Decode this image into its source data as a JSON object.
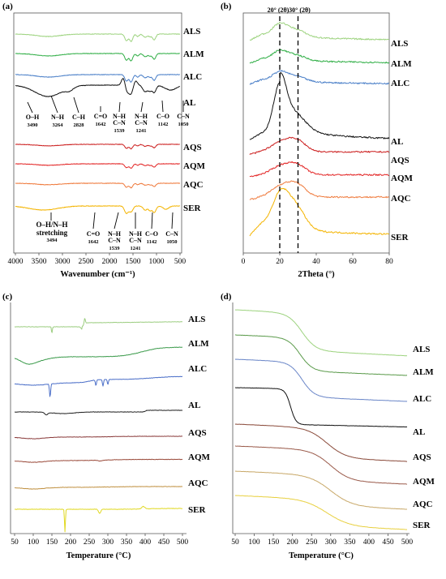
{
  "panels": [
    {
      "label": "(a)"
    },
    {
      "label": "(b)"
    },
    {
      "label": "(c)"
    },
    {
      "label": "(d)"
    }
  ],
  "colors": {
    "ALS": "#9dd37f",
    "ALM": "#2fae45",
    "ALC": "#4a7fc8",
    "AL": "#111111",
    "AQS": "#cc1f1f",
    "AQM": "#e32525",
    "AQC": "#ef7a3c",
    "SER": "#f4b400",
    "tg_ALS": "#9dd37f",
    "tg_ALM": "#5a9a4a",
    "tg_ALC": "#6a86c8",
    "tg_AL": "#111111",
    "tg_AQS": "#8a4a3a",
    "tg_AQM": "#9a5a4a",
    "tg_AQC": "#c8a868",
    "tg_SER": "#e8d040",
    "dsc_ALS": "#9ccd80",
    "dsc_ALM": "#3a9a4a",
    "dsc_ALC": "#4a6ec8",
    "dsc_AL": "#222222",
    "dsc_AQS": "#8a3a3a",
    "dsc_AQM": "#9a4a3a",
    "dsc_AQC": "#c09040",
    "dsc_SER": "#e0d820"
  },
  "chart_data": [
    {
      "type": "line",
      "panel": "(a)",
      "xlabel": "Wavenumber (cm⁻¹)",
      "x_ticks": [
        "4000",
        "3500",
        "3000",
        "2500",
        "2000",
        "1500",
        "1000",
        "500"
      ],
      "xlim": [
        4000,
        500
      ],
      "x_reversed": true,
      "series": [
        {
          "name": "ALS"
        },
        {
          "name": "ALM"
        },
        {
          "name": "ALC"
        },
        {
          "name": "AL"
        },
        {
          "name": "AQS"
        },
        {
          "name": "AQM"
        },
        {
          "name": "AQC"
        },
        {
          "name": "SER"
        }
      ],
      "al_annotations": [
        {
          "label": "O–H",
          "value": "3490"
        },
        {
          "label": "N–H",
          "value": "3264"
        },
        {
          "label": "C–H",
          "value": "2828"
        },
        {
          "label": "C=O",
          "value": "1642"
        },
        {
          "label": "N–H C–N",
          "value": "1539"
        },
        {
          "label": "N–H C–N",
          "value": "1241"
        },
        {
          "label": "C–O",
          "value": "1142"
        },
        {
          "label": "C–N",
          "value": "1050"
        }
      ],
      "ser_annotations": [
        {
          "label": "O–H/N–H stretching",
          "value": "3494"
        },
        {
          "label": "C=O",
          "value": "1642"
        },
        {
          "label": "N–H C–N",
          "value": "1539"
        },
        {
          "label": "N–H C–N",
          "value": "1241"
        },
        {
          "label": "C–O",
          "value": "1142"
        },
        {
          "label": "C–N",
          "value": "1050"
        }
      ]
    },
    {
      "type": "line",
      "panel": "(b)",
      "xlabel": "2Theta (°)",
      "x_ticks": [
        "0",
        "20",
        "40",
        "60",
        "80"
      ],
      "xlim": [
        0,
        80
      ],
      "markers": [
        {
          "x": 20,
          "label": "20° (2θ)"
        },
        {
          "x": 30,
          "label": "30° (2θ)"
        }
      ],
      "series": [
        {
          "name": "ALS"
        },
        {
          "name": "ALM"
        },
        {
          "name": "ALC"
        },
        {
          "name": "AL"
        },
        {
          "name": "AQS"
        },
        {
          "name": "AQM"
        },
        {
          "name": "AQC"
        },
        {
          "name": "SER"
        }
      ]
    },
    {
      "type": "line",
      "panel": "(c)",
      "xlabel": "Temperature (°C)",
      "x_ticks": [
        "50",
        "100",
        "150",
        "200",
        "250",
        "300",
        "350",
        "400",
        "450",
        "500"
      ],
      "xlim": [
        50,
        500
      ],
      "series": [
        {
          "name": "ALS"
        },
        {
          "name": "ALM"
        },
        {
          "name": "ALC"
        },
        {
          "name": "AL"
        },
        {
          "name": "AQS"
        },
        {
          "name": "AQM"
        },
        {
          "name": "AQC"
        },
        {
          "name": "SER"
        }
      ]
    },
    {
      "type": "line",
      "panel": "(d)",
      "xlabel": "Temperature (°C)",
      "x_ticks": [
        "50",
        "100",
        "150",
        "200",
        "250",
        "300",
        "350",
        "400",
        "450",
        "500"
      ],
      "xlim": [
        50,
        500
      ],
      "series": [
        {
          "name": "ALS"
        },
        {
          "name": "ALM"
        },
        {
          "name": "ALC"
        },
        {
          "name": "AL"
        },
        {
          "name": "AQS"
        },
        {
          "name": "AQM"
        },
        {
          "name": "AQC"
        },
        {
          "name": "SER"
        }
      ]
    }
  ]
}
